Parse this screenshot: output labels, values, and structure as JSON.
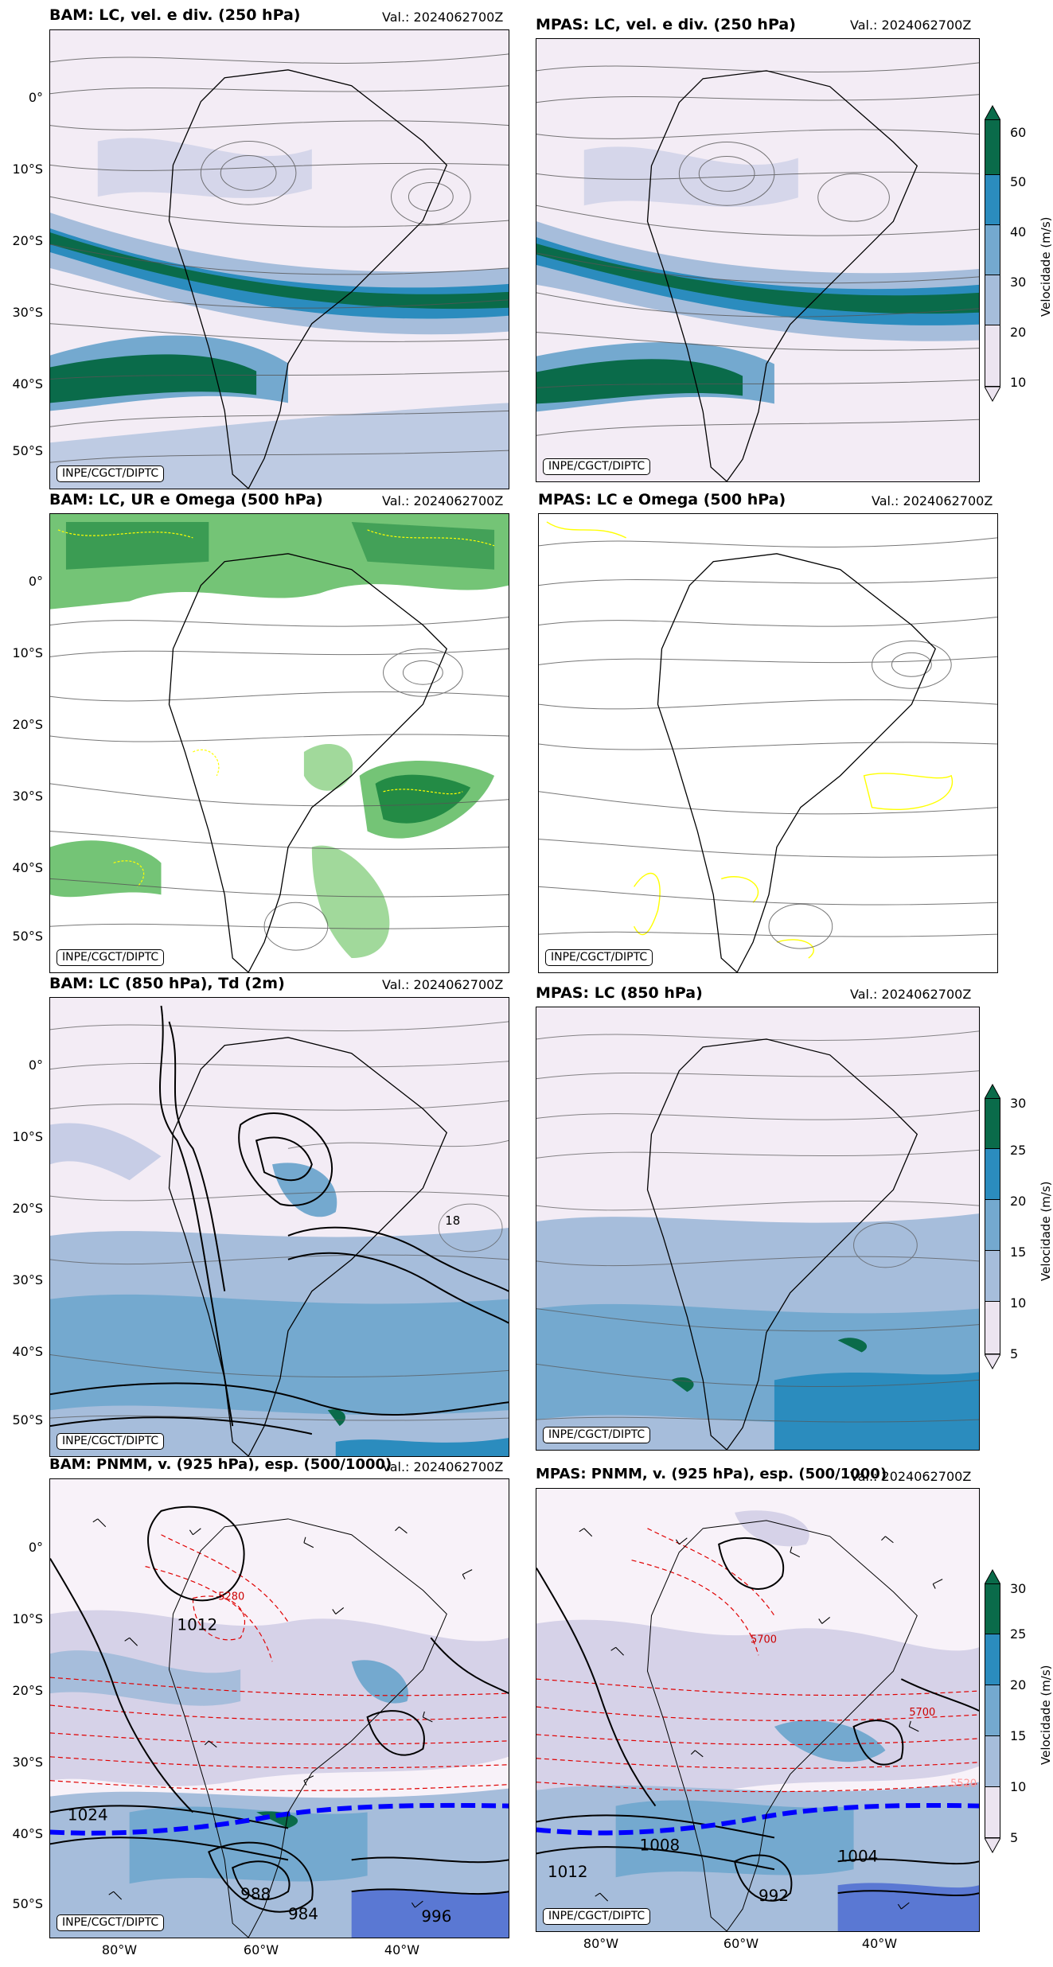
{
  "panels": [
    {
      "title": "BAM: LC, vel. e div. (250 hPa)",
      "valid": "Val.: 2024062700Z",
      "credit": "INPE/CGCT/DIPTC"
    },
    {
      "title": "MPAS: LC, vel. e div. (250 hPa)",
      "valid": "Val.: 2024062700Z",
      "credit": "INPE/CGCT/DIPTC"
    },
    {
      "title": "BAM: LC, UR e Omega (500 hPa)",
      "valid": "Val.: 2024062700Z",
      "credit": "INPE/CGCT/DIPTC"
    },
    {
      "title": "MPAS: LC e Omega (500 hPa)",
      "valid": "Val.: 2024062700Z",
      "credit": "INPE/CGCT/DIPTC"
    },
    {
      "title": "BAM: LC (850 hPa), Td (2m)",
      "valid": "Val.: 2024062700Z",
      "credit": "INPE/CGCT/DIPTC"
    },
    {
      "title": "MPAS: LC (850 hPa)",
      "valid": "Val.: 2024062700Z",
      "credit": "INPE/CGCT/DIPTC"
    },
    {
      "title": "BAM: PNMM, v. (925 hPa), esp. (500/1000)",
      "valid": "Val.: 2024062700Z",
      "credit": "INPE/CGCT/DIPTC"
    },
    {
      "title": "MPAS: PNMM, v. (925 hPa), esp. (500/1000)",
      "valid": "Val.: 2024062700Z",
      "credit": "INPE/CGCT/DIPTC"
    }
  ],
  "lat_labels": [
    "0°",
    "10°S",
    "20°S",
    "30°S",
    "40°S",
    "50°S"
  ],
  "lon_labels": [
    "80°W",
    "60°W",
    "40°W"
  ],
  "colorbars": [
    {
      "ticks": [
        "60",
        "50",
        "40",
        "30",
        "20",
        "10"
      ],
      "label": "Velocidade (m/s)"
    },
    {
      "ticks": [
        "30",
        "25",
        "20",
        "15",
        "10",
        "5"
      ],
      "label": "Velocidade (m/s)"
    },
    {
      "ticks": [
        "30",
        "25",
        "20",
        "15",
        "10",
        "5"
      ],
      "label": "Velocidade (m/s)"
    }
  ],
  "colorbar_colors": [
    "#ece4f0",
    "#a6bddb",
    "#74a9cf",
    "#2b8cbe",
    "#045a8d",
    "#0a6b4a"
  ],
  "contour_labels": {
    "bam_pnmm": [
      "5280",
      "1012",
      "1024",
      "988",
      "984",
      "996"
    ],
    "mpas_pnmm": [
      "5700",
      "5700",
      "1008",
      "1004",
      "1012",
      "992",
      "5520"
    ],
    "bam_850": [
      "18"
    ]
  }
}
